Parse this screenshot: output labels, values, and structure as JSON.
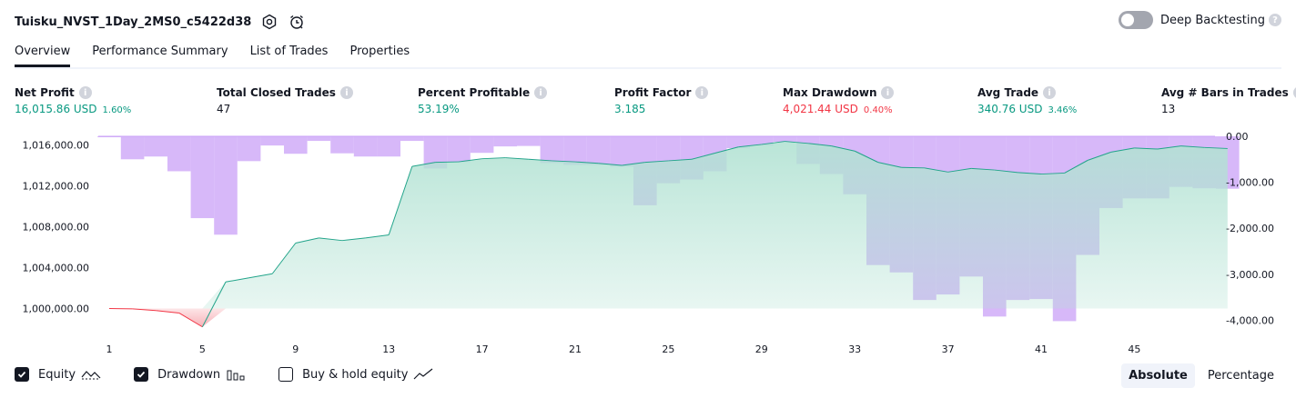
{
  "header": {
    "title": "Tuisku_NVST_1Day_2MS0_c5422d38",
    "settings_icon": "gear-icon",
    "alert_icon": "alarm-clock-icon"
  },
  "deep_backtesting": {
    "label": "Deep Backtesting",
    "enabled": false
  },
  "tabs": [
    {
      "label": "Overview",
      "active": true
    },
    {
      "label": "Performance Summary"
    },
    {
      "label": "List of Trades"
    },
    {
      "label": "Properties"
    }
  ],
  "stats": {
    "net_profit": {
      "label": "Net Profit",
      "value": "16,015.86 USD",
      "pct": "1.60%"
    },
    "closed_trades": {
      "label": "Total Closed Trades",
      "value": "47"
    },
    "percent_profitable": {
      "label": "Percent Profitable",
      "value": "53.19%"
    },
    "profit_factor": {
      "label": "Profit Factor",
      "value": "3.185"
    },
    "max_drawdown": {
      "label": "Max Drawdown",
      "value": "4,021.44 USD",
      "pct": "0.40%"
    },
    "avg_trade": {
      "label": "Avg Trade",
      "value": "340.76 USD",
      "pct": "3.46%"
    },
    "avg_bars": {
      "label": "Avg # Bars in Trades",
      "value": "13"
    }
  },
  "colors": {
    "green": "#089981",
    "red": "#f23645",
    "drawdown": "#c9a0f7",
    "equity_fill": "#b2e2d3"
  },
  "chart_data": {
    "type": "area",
    "x_ticks": [
      "1",
      "5",
      "9",
      "13",
      "17",
      "21",
      "25",
      "29",
      "33",
      "37",
      "41",
      "45"
    ],
    "left_ticks": [
      "1,016,000.00",
      "1,012,000.00",
      "1,008,000.00",
      "1,004,000.00",
      "1,000,000.00"
    ],
    "right_ticks": [
      "0.00",
      "-1,000.00",
      "-2,000.00",
      "-3,000.00",
      "-4,000.00"
    ],
    "left_range": [
      998000,
      1017000
    ],
    "right_range": [
      -4200,
      0
    ],
    "series": [
      {
        "name": "Equity",
        "values": [
          1000000,
          999970,
          999800,
          999560,
          998200,
          1002600,
          1003000,
          1003400,
          1006400,
          1006900,
          1006650,
          1006900,
          1007200,
          1013900,
          1014300,
          1014350,
          1014650,
          1014750,
          1014600,
          1014450,
          1014350,
          1014200,
          1014000,
          1014300,
          1014450,
          1014600,
          1015200,
          1015800,
          1016050,
          1016350,
          1016150,
          1015900,
          1015400,
          1014300,
          1013800,
          1013750,
          1013350,
          1013700,
          1013550,
          1013300,
          1013150,
          1013250,
          1014500,
          1015300,
          1015700,
          1015600,
          1015900,
          1015750,
          1015650
        ]
      },
      {
        "name": "Drawdown",
        "values": [
          -20,
          -500,
          -440,
          -760,
          -1780,
          -2140,
          -540,
          -200,
          -380,
          -100,
          -370,
          -440,
          -440,
          -100,
          -700,
          -560,
          -360,
          -220,
          -210,
          -580,
          -620,
          -620,
          -660,
          -1500,
          -1020,
          -940,
          -760,
          -260,
          -200,
          -120,
          -600,
          -820,
          -1260,
          -2800,
          -2960,
          -3560,
          -3440,
          -3050,
          -3920,
          -3560,
          -3540,
          -4020,
          -2580,
          -1560,
          -1350,
          -1350,
          -1100,
          -1130,
          -1140
        ]
      }
    ]
  },
  "legend": {
    "equity": {
      "label": "Equity",
      "checked": true
    },
    "drawdown": {
      "label": "Drawdown",
      "checked": true
    },
    "buy_hold": {
      "label": "Buy & hold equity",
      "checked": false
    }
  },
  "modes": {
    "absolute": "Absolute",
    "percentage": "Percentage",
    "active": "absolute"
  }
}
